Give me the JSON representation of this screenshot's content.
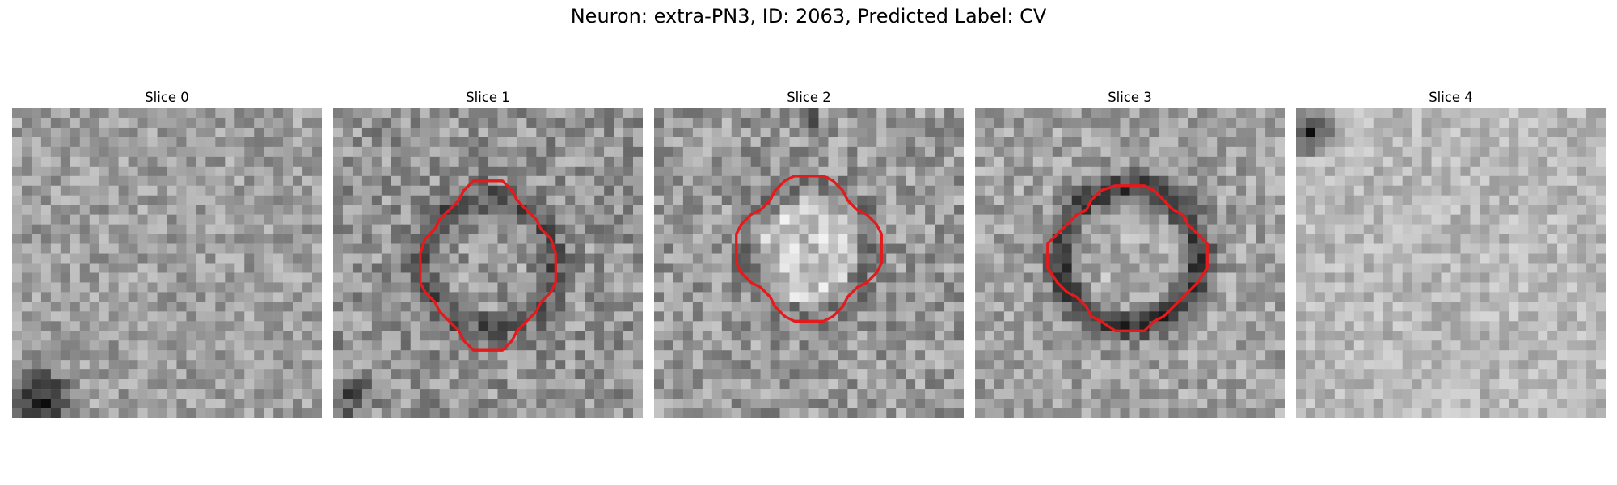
{
  "figure": {
    "title": "Neuron: extra-PN3, ID: 2063, Predicted Label: CV"
  },
  "panels": [
    {
      "title": "Slice 0",
      "has_contour": false
    },
    {
      "title": "Slice 1",
      "has_contour": true
    },
    {
      "title": "Slice 2",
      "has_contour": true
    },
    {
      "title": "Slice 3",
      "has_contour": true
    },
    {
      "title": "Slice 4",
      "has_contour": false
    }
  ],
  "colors": {
    "contour": "#e41a1c",
    "background": "#ffffff"
  }
}
